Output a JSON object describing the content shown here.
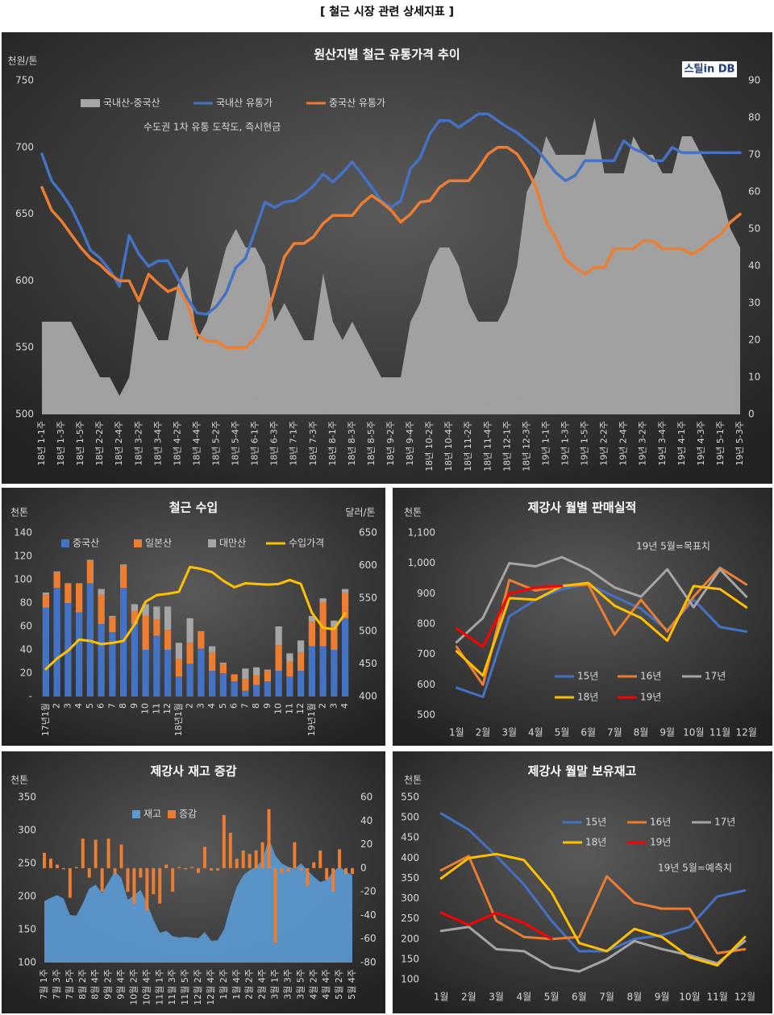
{
  "page_title": "[ 철근 시장 관련 상세지표 ]",
  "chart_data": [
    {
      "type": "line",
      "title": "원산지별 철근 유통가격 추이",
      "y_label": "천원/톤",
      "note": "수도권 1차 유통 도착도, 즉시현금",
      "logo": "스틸in DB",
      "categories": [
        "18년 1-1주",
        null,
        "18년 1-3주",
        null,
        "18년 1-5주",
        null,
        "18년 2-2주",
        null,
        "18년 2-4주",
        null,
        "18년 3-2주",
        null,
        "18년 3-4주",
        null,
        "18년 4-2주",
        null,
        "18년 4-4주",
        null,
        "18년 5-2주",
        null,
        "18년 5-4주",
        null,
        "18년 6-1주",
        null,
        "18년 6-3주",
        null,
        "18년 7-1주",
        null,
        "18년 7-3주",
        null,
        "18년 8-1주",
        null,
        "18년 8-3주",
        null,
        "18년 8-5주",
        null,
        "18년 9-2주",
        null,
        "18년 9-4주",
        null,
        "18년 10-2주",
        null,
        "18년 10-4주",
        null,
        "18년 11-2주",
        null,
        "18년 11-4주",
        null,
        "18년 12-1주",
        null,
        "18년 12-3주",
        null,
        "19년 1-1주",
        null,
        "19년 1-3주",
        null,
        "19년 1-5주",
        null,
        "19년 2-2주",
        null,
        "19년 2-4주",
        null,
        "19년 3-2주",
        null,
        "19년 3-4주",
        null,
        "19년 4-1주",
        null,
        "19년 4-3주",
        null,
        "19년 5-1주",
        null,
        "19년 5-3주"
      ],
      "series": [
        {
          "name": "국내산-중국산",
          "type": "area",
          "axis": "y2",
          "color": "#a6a6a6",
          "values": [
            25,
            25,
            25,
            25,
            20,
            15,
            10,
            10,
            5,
            10,
            30,
            25,
            20,
            20,
            35,
            40,
            20,
            25,
            35,
            45,
            50,
            45,
            45,
            40,
            25,
            30,
            25,
            20,
            20,
            38,
            25,
            20,
            25,
            20,
            15,
            10,
            10,
            10,
            25,
            30,
            40,
            45,
            45,
            40,
            30,
            25,
            25,
            25,
            30,
            40,
            60,
            65,
            75,
            70,
            70,
            70,
            70,
            80,
            65,
            65,
            65,
            75,
            70,
            70,
            65,
            65,
            75,
            75,
            70,
            65,
            60,
            50,
            45
          ]
        },
        {
          "name": "국내산 유통가",
          "color": "#4472c4",
          "values": [
            695,
            675,
            666,
            655,
            640,
            623,
            617,
            608,
            596,
            634,
            620,
            611,
            615,
            615,
            602,
            587,
            576,
            575,
            581,
            591,
            610,
            617,
            638,
            659,
            655,
            659,
            660,
            665,
            671,
            680,
            674,
            681,
            689,
            680,
            670,
            660,
            655,
            660,
            684,
            692,
            710,
            720,
            720,
            715,
            720,
            725,
            725,
            720,
            715,
            711,
            705,
            699,
            690,
            681,
            675,
            679,
            690,
            690,
            690,
            690,
            705,
            699,
            696,
            690,
            690,
            700,
            696,
            696,
            696,
            696,
            696,
            696,
            696
          ]
        },
        {
          "name": "중국산 유통가",
          "color": "#ed7d31",
          "values": [
            670,
            653,
            645,
            635,
            625,
            617,
            612,
            605,
            600,
            600,
            585,
            605,
            598,
            592,
            595,
            583,
            560,
            555,
            555,
            550,
            550,
            550,
            557,
            569,
            593,
            618,
            628,
            628,
            633,
            643,
            649,
            649,
            649,
            658,
            664,
            659,
            653,
            644,
            650,
            659,
            660,
            670,
            675,
            675,
            675,
            684,
            695,
            700,
            700,
            695,
            684,
            669,
            644,
            632,
            616,
            610,
            605,
            610,
            610,
            624,
            624,
            624,
            630,
            630,
            624,
            624,
            624,
            620,
            624,
            630,
            635,
            644,
            650
          ]
        }
      ],
      "ylim": [
        500,
        750
      ],
      "yticks": [
        500,
        550,
        600,
        650,
        700,
        750
      ],
      "y2lim": [
        0,
        90
      ],
      "y2ticks": [
        0,
        10,
        20,
        30,
        40,
        50,
        60,
        70,
        80,
        90
      ],
      "legend": "top"
    },
    {
      "type": "bar",
      "stacked": true,
      "title": "철근 수입",
      "y_label": "천톤",
      "y2_label": "달러/톤",
      "categories": [
        "17년1월",
        "2",
        "3",
        "4",
        "5",
        "6",
        "7",
        "8",
        "9",
        "10",
        "11",
        "12",
        "18년1월",
        "2",
        "3",
        "4",
        "5",
        "6",
        "7",
        "8",
        "9",
        "10",
        "11",
        "12",
        "19년1월",
        "2",
        "3",
        "4"
      ],
      "series": [
        {
          "name": "중국산",
          "color": "#4472c4",
          "values": [
            76,
            93,
            80,
            72,
            97,
            62,
            55,
            93,
            62,
            40,
            52,
            40,
            17,
            28,
            41,
            22,
            20,
            13,
            5,
            10,
            13,
            22,
            17,
            22,
            43,
            43,
            40,
            67
          ]
        },
        {
          "name": "일본산",
          "color": "#ed7d31",
          "values": [
            11,
            13,
            17,
            25,
            19,
            25,
            13,
            19,
            11,
            29,
            14,
            17,
            15,
            18,
            15,
            16,
            8,
            6,
            10,
            8,
            9,
            22,
            13,
            16,
            21,
            38,
            20,
            22
          ]
        },
        {
          "name": "대만산",
          "color": "#a5a5a5",
          "values": [
            2,
            1,
            0,
            0,
            1,
            5,
            1,
            1,
            6,
            10,
            11,
            20,
            14,
            21,
            0,
            5,
            1,
            0,
            9,
            7,
            1,
            16,
            7,
            10,
            5,
            3,
            5,
            3
          ]
        },
        {
          "name": "수입가격",
          "type": "line",
          "axis": "y2",
          "color": "#ffc000",
          "values": [
            442,
            458,
            470,
            487,
            485,
            480,
            482,
            485,
            510,
            545,
            555,
            557,
            560,
            598,
            595,
            590,
            577,
            567,
            573,
            572,
            571,
            572,
            578,
            572,
            528,
            505,
            503,
            527
          ]
        }
      ],
      "ylim": [
        0,
        140
      ],
      "yticks": [
        {
          "value": 0,
          "label": "-"
        },
        20,
        40,
        60,
        80,
        100,
        120,
        140
      ],
      "y2lim": [
        400,
        650
      ],
      "y2ticks": [
        400,
        450,
        500,
        550,
        600,
        650
      ],
      "legend": "top"
    },
    {
      "type": "line",
      "title": "제강사 월별 판매실적",
      "y_label": "천톤",
      "annotation": "19년 5월=목표치",
      "categories": [
        "1월",
        "2월",
        "3월",
        "4월",
        "5월",
        "6월",
        "7월",
        "8월",
        "9월",
        "10월",
        "11월",
        "12월"
      ],
      "series": [
        {
          "name": "15년",
          "color": "#4472c4",
          "values": [
            590,
            560,
            825,
            880,
            915,
            930,
            890,
            850,
            780,
            880,
            790,
            775
          ]
        },
        {
          "name": "16년",
          "color": "#ed7d31",
          "values": [
            725,
            600,
            945,
            910,
            925,
            930,
            765,
            880,
            775,
            890,
            985,
            930
          ]
        },
        {
          "name": "17년",
          "color": "#a5a5a5",
          "values": [
            740,
            820,
            1000,
            990,
            1020,
            980,
            920,
            890,
            980,
            855,
            980,
            890
          ]
        },
        {
          "name": "18년",
          "color": "#ffc000",
          "values": [
            710,
            630,
            885,
            880,
            925,
            935,
            860,
            820,
            745,
            925,
            915,
            855
          ]
        },
        {
          "name": "19년",
          "color": "#ff0000",
          "values": [
            785,
            725,
            900,
            920,
            925,
            null,
            null,
            null,
            null,
            null,
            null,
            null
          ]
        }
      ],
      "ylim": [
        500,
        1100
      ],
      "yticks": [
        500,
        600,
        700,
        800,
        900,
        {
          "value": 1000,
          "label": "1,000"
        },
        {
          "value": 1100,
          "label": "1,100"
        }
      ],
      "legend": "bottom"
    },
    {
      "type": "area",
      "title": "제강사 재고 증감",
      "y_label": "천톤",
      "categories": [
        "7월 1주",
        null,
        "7월 3주",
        null,
        "7월 5주",
        null,
        "8월 2주",
        null,
        "8월 4주",
        null,
        "9월 2주",
        null,
        "9월 4주",
        null,
        "10월 2주",
        null,
        "10월 4주",
        null,
        "11월 1주",
        null,
        "11월 3주",
        null,
        "11월 5주",
        null,
        "12월 2주",
        null,
        "12월 4주",
        null,
        "1월 2주",
        null,
        "1월 4주",
        null,
        "2월 2주",
        null,
        "2월 4주",
        null,
        "3월 1주",
        null,
        "3월 3주",
        null,
        "3월 5주",
        null,
        "4월 2주",
        null,
        "4월 4주",
        null,
        "5월 2주",
        null,
        "5월 4주"
      ],
      "series": [
        {
          "name": "재고",
          "color": "#5b9bd5",
          "values": [
            193,
            198,
            202,
            197,
            172,
            171,
            190,
            212,
            218,
            205,
            222,
            238,
            228,
            195,
            202,
            210,
            190,
            165,
            145,
            148,
            140,
            138,
            139,
            138,
            137,
            146,
            133,
            134,
            150,
            185,
            215,
            232,
            240,
            245,
            255,
            288,
            262,
            250,
            245,
            242,
            250,
            240,
            230,
            222,
            225,
            238,
            245,
            238,
            232
          ]
        },
        {
          "name": "증감",
          "type": "bar",
          "axis": "y2",
          "color": "#ed7d31",
          "values": [
            13,
            8,
            3,
            -1,
            -25,
            1,
            25,
            -8,
            24,
            -20,
            25,
            -5,
            20,
            -20,
            -30,
            -8,
            -36,
            -22,
            -30,
            3,
            -20,
            1,
            -1,
            1,
            -4,
            18,
            -2,
            -2,
            45,
            30,
            8,
            15,
            12,
            15,
            22,
            50,
            -63,
            -4,
            -3,
            22,
            -2,
            -15,
            5,
            15,
            -10,
            -20,
            16,
            -5,
            -5
          ]
        }
      ],
      "ylim": [
        100,
        350
      ],
      "yticks": [
        100,
        150,
        200,
        250,
        300,
        350
      ],
      "y2lim": [
        -80,
        60
      ],
      "y2ticks": [
        -80,
        -60,
        -40,
        -20,
        0,
        20,
        40,
        60
      ],
      "legend": "top"
    },
    {
      "type": "line",
      "title": "제강사 월말 보유재고",
      "y_label": "천톤",
      "annotation": "19년 5월=예측치",
      "categories": [
        "1월",
        "2월",
        "3월",
        "4월",
        "5월",
        "6월",
        "7월",
        "8월",
        "9월",
        "10월",
        "11월",
        "12월"
      ],
      "series": [
        {
          "name": "15년",
          "color": "#4472c4",
          "values": [
            510,
            470,
            405,
            335,
            245,
            170,
            170,
            200,
            210,
            230,
            305,
            320
          ]
        },
        {
          "name": "16년",
          "color": "#ed7d31",
          "values": [
            370,
            405,
            245,
            205,
            200,
            205,
            355,
            290,
            275,
            275,
            165,
            175
          ]
        },
        {
          "name": "17년",
          "color": "#a5a5a5",
          "values": [
            220,
            230,
            175,
            170,
            130,
            120,
            150,
            195,
            175,
            160,
            140,
            195
          ]
        },
        {
          "name": "18년",
          "color": "#ffc000",
          "values": [
            350,
            400,
            410,
            395,
            315,
            190,
            170,
            225,
            205,
            155,
            135,
            205
          ]
        },
        {
          "name": "19년",
          "color": "#ff0000",
          "values": [
            265,
            235,
            265,
            240,
            200,
            null,
            null,
            null,
            null,
            null,
            null,
            null
          ]
        }
      ],
      "ylim": [
        100,
        550
      ],
      "yticks": [
        100,
        150,
        200,
        250,
        300,
        350,
        400,
        450,
        500,
        550
      ],
      "legend": "top"
    }
  ]
}
